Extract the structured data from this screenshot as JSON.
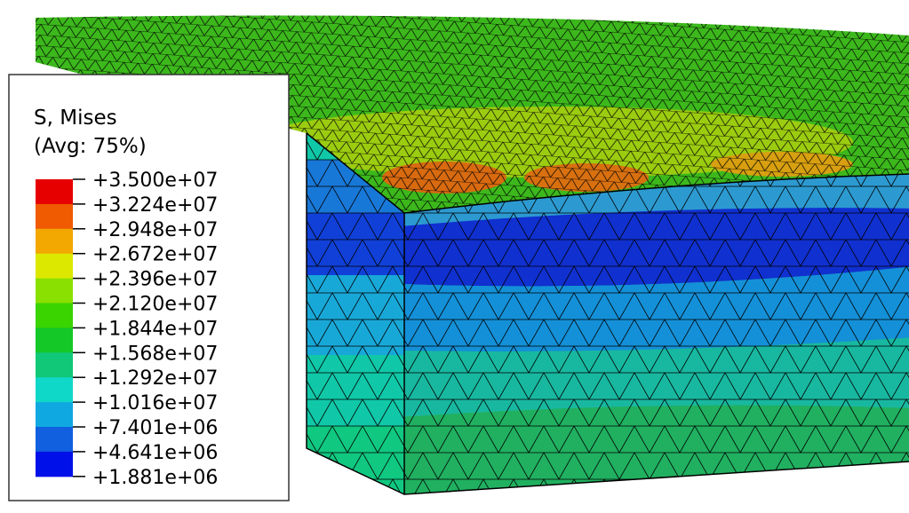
{
  "legend": {
    "title": "S, Mises",
    "subtitle": "(Avg: 75%)",
    "labels": [
      "+3.500e+07",
      "+3.224e+07",
      "+2.948e+07",
      "+2.672e+07",
      "+2.396e+07",
      "+2.120e+07",
      "+1.844e+07",
      "+1.568e+07",
      "+1.292e+07",
      "+1.016e+07",
      "+7.401e+06",
      "+4.641e+06",
      "+1.881e+06"
    ],
    "colors": [
      "#e60000",
      "#f05a00",
      "#f2a800",
      "#dce800",
      "#8ae000",
      "#3ad400",
      "#14c828",
      "#10c878",
      "#10d8c8",
      "#10a8e0",
      "#1060e0",
      "#0010e8"
    ]
  }
}
